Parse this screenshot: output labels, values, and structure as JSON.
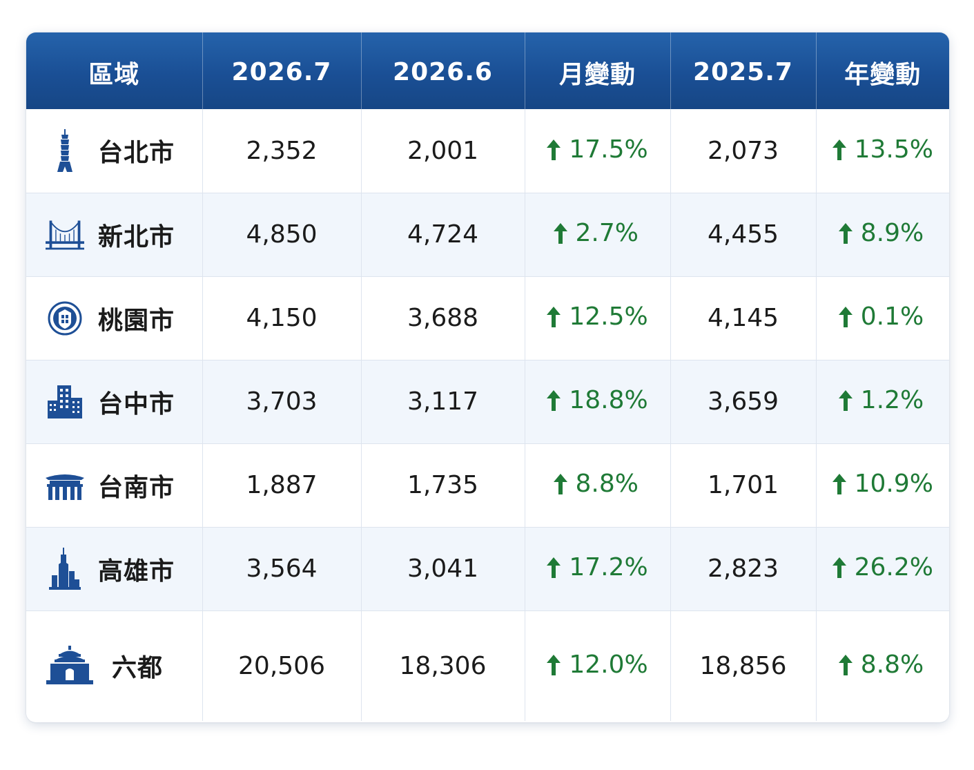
{
  "headers": [
    "區域",
    "2026.7",
    "2026.6",
    "月變動",
    "2025.7",
    "年變動"
  ],
  "colors": {
    "header": "#1a4f95",
    "up": "#1f7a36",
    "icon": "#1e4f96"
  },
  "rows": [
    {
      "icon": "taipei-101-icon",
      "region": "台北市",
      "m2026_7": "2,352",
      "m2026_6": "2,001",
      "mom": "17.5%",
      "y2025_7": "2,073",
      "yoy": "13.5%"
    },
    {
      "icon": "bridge-icon",
      "region": "新北市",
      "m2026_7": "4,850",
      "m2026_6": "4,724",
      "mom": "2.7%",
      "y2025_7": "4,455",
      "yoy": "8.9%"
    },
    {
      "icon": "city-emblem-icon",
      "region": "桃園市",
      "m2026_7": "4,150",
      "m2026_6": "3,688",
      "mom": "12.5%",
      "y2025_7": "4,145",
      "yoy": "0.1%"
    },
    {
      "icon": "buildings-icon",
      "region": "台中市",
      "m2026_7": "3,703",
      "m2026_6": "3,117",
      "mom": "18.8%",
      "y2025_7": "3,659",
      "yoy": "1.2%"
    },
    {
      "icon": "temple-gate-icon",
      "region": "台南市",
      "m2026_7": "1,887",
      "m2026_6": "1,735",
      "mom": "8.8%",
      "y2025_7": "1,701",
      "yoy": "10.9%"
    },
    {
      "icon": "tower-skyline-icon",
      "region": "高雄市",
      "m2026_7": "3,564",
      "m2026_6": "3,041",
      "mom": "17.2%",
      "y2025_7": "2,823",
      "yoy": "26.2%"
    },
    {
      "icon": "memorial-hall-icon",
      "region": "六都",
      "m2026_7": "20,506",
      "m2026_6": "18,306",
      "mom": "12.0%",
      "y2025_7": "18,856",
      "yoy": "8.8%"
    }
  ],
  "change_direction_icon": "up-arrow-icon"
}
